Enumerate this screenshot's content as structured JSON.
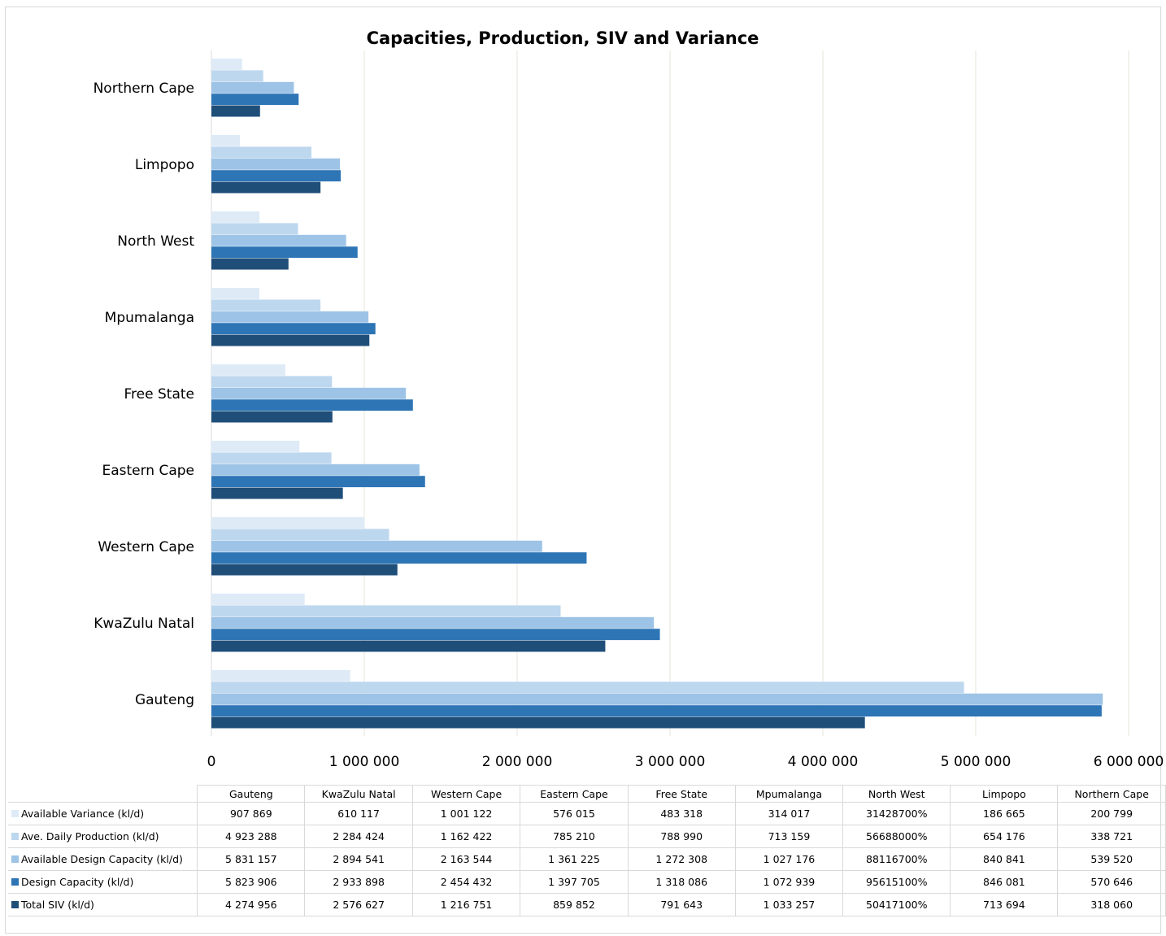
{
  "chart_data": {
    "type": "bar",
    "orientation": "horizontal",
    "title": "Capacities, Production, SIV and Variance",
    "categories": [
      "Gauteng",
      "KwaZulu Natal",
      "Western Cape",
      "Eastern Cape",
      "Free State",
      "Mpumalanga",
      "North West",
      "Limpopo",
      "Northern Cape"
    ],
    "x_ticks": [
      "0",
      "1 000 000",
      "2 000 000",
      "3 000 000",
      "4 000 000",
      "5 000 000",
      "6 000 000"
    ],
    "xlim": [
      0,
      6000000
    ],
    "grid": true,
    "legend": "data table below chart",
    "series": [
      {
        "name": "Available Variance (kl/d)",
        "color": "#deebf7",
        "values": [
          907869,
          610117,
          1001122,
          576015,
          483318,
          314017,
          314287,
          186665,
          200799
        ],
        "labels": [
          "907 869",
          "610 117",
          "1 001 122",
          "576 015",
          "483 318",
          "314 017",
          "31428700%",
          "186 665",
          "200 799"
        ]
      },
      {
        "name": "Ave. Daily Production (kl/d)",
        "color": "#bdd7ee",
        "values": [
          4923288,
          2284424,
          1162422,
          785210,
          788990,
          713159,
          566880,
          654176,
          338721
        ],
        "labels": [
          "4 923 288",
          "2 284 424",
          "1 162 422",
          "785 210",
          "788 990",
          "713 159",
          "56688000%",
          "654 176",
          "338 721"
        ]
      },
      {
        "name": "Available Design  Capacity (kl/d)",
        "color": "#9dc3e6",
        "values": [
          5831157,
          2894541,
          2163544,
          1361225,
          1272308,
          1027176,
          881167,
          840841,
          539520
        ],
        "labels": [
          "5 831 157",
          "2 894 541",
          "2 163 544",
          "1 361 225",
          "1 272 308",
          "1 027 176",
          "88116700%",
          "840 841",
          "539 520"
        ]
      },
      {
        "name": "Design Capacity (kl/d)",
        "color": "#2e75b6",
        "values": [
          5823906,
          2933898,
          2454432,
          1397705,
          1318086,
          1072939,
          956151,
          846081,
          570646
        ],
        "labels": [
          "5 823 906",
          "2 933 898",
          "2 454 432",
          "1 397 705",
          "1 318 086",
          "1 072 939",
          "95615100%",
          "846 081",
          "570 646"
        ]
      },
      {
        "name": "Total SIV  (kl/d)",
        "color": "#1f4e79",
        "values": [
          4274956,
          2576627,
          1216751,
          859852,
          791643,
          1033257,
          504171,
          713694,
          318060
        ],
        "labels": [
          "4 274 956",
          "2 576 627",
          "1 216 751",
          "859 852",
          "791 643",
          "1 033 257",
          "50417100%",
          "713 694",
          "318 060"
        ]
      }
    ]
  }
}
